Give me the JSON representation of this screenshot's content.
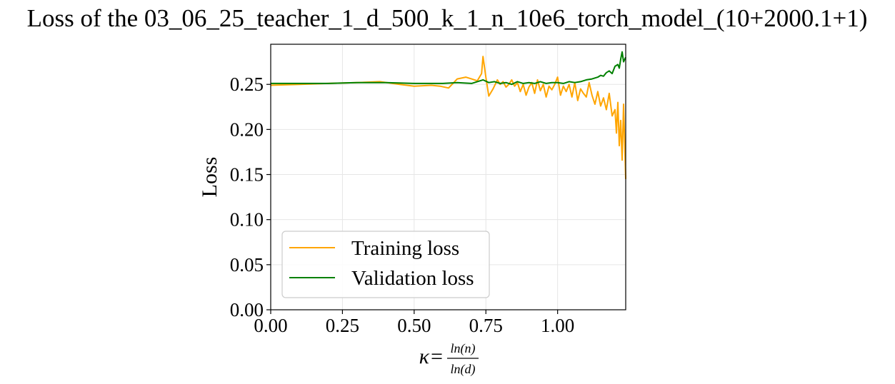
{
  "chart_data": {
    "type": "line",
    "title": "Loss of the 03_06_25_teacher_1_d_500_k_1_n_10e6_torch_model_(10+2000.1+1)",
    "xlabel": {
      "prefix": "κ=",
      "numerator": "ln(n)",
      "denominator": "ln(d)"
    },
    "ylabel": "Loss",
    "xlim": [
      0,
      1.2374
    ],
    "ylim": [
      0,
      0.2945
    ],
    "x_ticks": [
      0,
      0.25,
      0.5,
      0.75,
      1.0
    ],
    "x_tick_labels": [
      "0.00",
      "0.25",
      "0.50",
      "0.75",
      "1.00"
    ],
    "y_ticks": [
      0,
      0.05,
      0.1,
      0.15,
      0.2,
      0.25
    ],
    "y_tick_labels": [
      "0.00",
      "0.05",
      "0.10",
      "0.15",
      "0.20",
      "0.25"
    ],
    "grid": true,
    "legend_position": "lower-left",
    "series": [
      {
        "name": "Training loss",
        "color": "#FFA500",
        "x": [
          0.0,
          0.1,
          0.2,
          0.3,
          0.38,
          0.45,
          0.5,
          0.56,
          0.59,
          0.62,
          0.65,
          0.68,
          0.7,
          0.72,
          0.735,
          0.74,
          0.75,
          0.76,
          0.775,
          0.79,
          0.8,
          0.81,
          0.82,
          0.83,
          0.84,
          0.85,
          0.86,
          0.87,
          0.88,
          0.89,
          0.9,
          0.91,
          0.92,
          0.93,
          0.94,
          0.95,
          0.96,
          0.97,
          0.98,
          0.99,
          1.0,
          1.01,
          1.02,
          1.03,
          1.04,
          1.05,
          1.06,
          1.07,
          1.08,
          1.09,
          1.1,
          1.11,
          1.12,
          1.13,
          1.14,
          1.15,
          1.16,
          1.17,
          1.18,
          1.19,
          1.2,
          1.205,
          1.21,
          1.215,
          1.22,
          1.225,
          1.23,
          1.2374
        ],
        "y": [
          0.249,
          0.25,
          0.251,
          0.252,
          0.253,
          0.25,
          0.248,
          0.249,
          0.248,
          0.246,
          0.256,
          0.258,
          0.256,
          0.254,
          0.262,
          0.281,
          0.258,
          0.237,
          0.245,
          0.255,
          0.25,
          0.253,
          0.247,
          0.25,
          0.255,
          0.248,
          0.252,
          0.242,
          0.25,
          0.238,
          0.247,
          0.252,
          0.24,
          0.255,
          0.243,
          0.25,
          0.236,
          0.248,
          0.244,
          0.25,
          0.258,
          0.238,
          0.248,
          0.242,
          0.25,
          0.236,
          0.252,
          0.232,
          0.245,
          0.24,
          0.236,
          0.252,
          0.238,
          0.228,
          0.242,
          0.226,
          0.235,
          0.222,
          0.24,
          0.215,
          0.222,
          0.196,
          0.23,
          0.182,
          0.21,
          0.166,
          0.228,
          0.145
        ]
      },
      {
        "name": "Validation loss",
        "color": "#008000",
        "x": [
          0.0,
          0.1,
          0.2,
          0.3,
          0.4,
          0.5,
          0.55,
          0.6,
          0.65,
          0.7,
          0.74,
          0.76,
          0.78,
          0.8,
          0.82,
          0.84,
          0.86,
          0.88,
          0.9,
          0.92,
          0.94,
          0.96,
          0.98,
          1.0,
          1.02,
          1.04,
          1.06,
          1.08,
          1.1,
          1.12,
          1.14,
          1.15,
          1.16,
          1.17,
          1.18,
          1.19,
          1.2,
          1.21,
          1.215,
          1.22,
          1.225,
          1.23,
          1.2374
        ],
        "y": [
          0.251,
          0.251,
          0.251,
          0.252,
          0.252,
          0.251,
          0.251,
          0.251,
          0.252,
          0.251,
          0.255,
          0.252,
          0.253,
          0.251,
          0.252,
          0.25,
          0.253,
          0.251,
          0.252,
          0.251,
          0.253,
          0.251,
          0.252,
          0.252,
          0.251,
          0.253,
          0.252,
          0.253,
          0.255,
          0.256,
          0.258,
          0.26,
          0.259,
          0.263,
          0.265,
          0.262,
          0.27,
          0.272,
          0.268,
          0.278,
          0.286,
          0.275,
          0.28
        ]
      }
    ]
  }
}
